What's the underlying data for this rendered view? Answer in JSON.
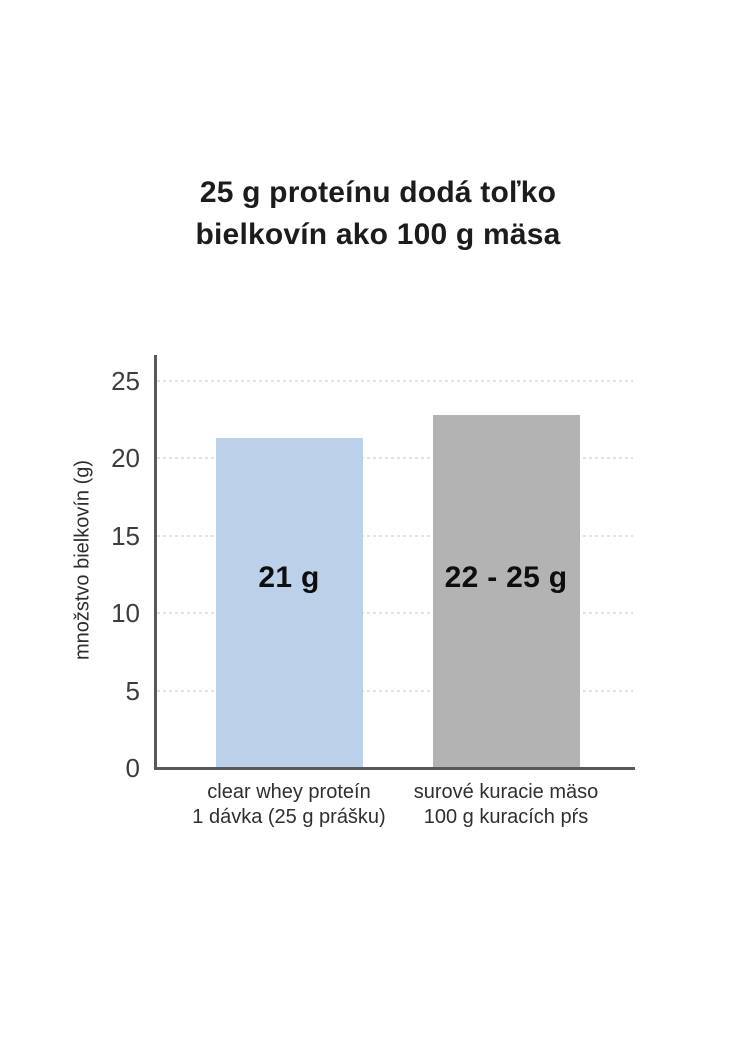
{
  "header": {
    "title": "25 g proteínu dodá toľko\nbielkovín ako 100 g mäsa"
  },
  "chart_data": {
    "type": "bar",
    "title": "25 g proteínu dodá toľko bielkovín ako 100 g mäsa",
    "xlabel": "",
    "ylabel": "množstvo bielkovín (g)",
    "ylim": [
      0,
      26.6
    ],
    "yticks": [
      0,
      5,
      10,
      15,
      20,
      25
    ],
    "grid": "horizontal-dotted",
    "legend": "none",
    "categories": [
      [
        "clear whey proteín",
        "1 dávka (25 g prášku)"
      ],
      [
        "surové kuracie mäso",
        "100 g kuracích pŕs"
      ]
    ],
    "values": [
      21.3,
      22.8
    ],
    "bar_labels": [
      "21 g",
      "22 - 25 g"
    ],
    "bar_colors": [
      "#bbd1e9",
      "#b3b3b3"
    ]
  }
}
